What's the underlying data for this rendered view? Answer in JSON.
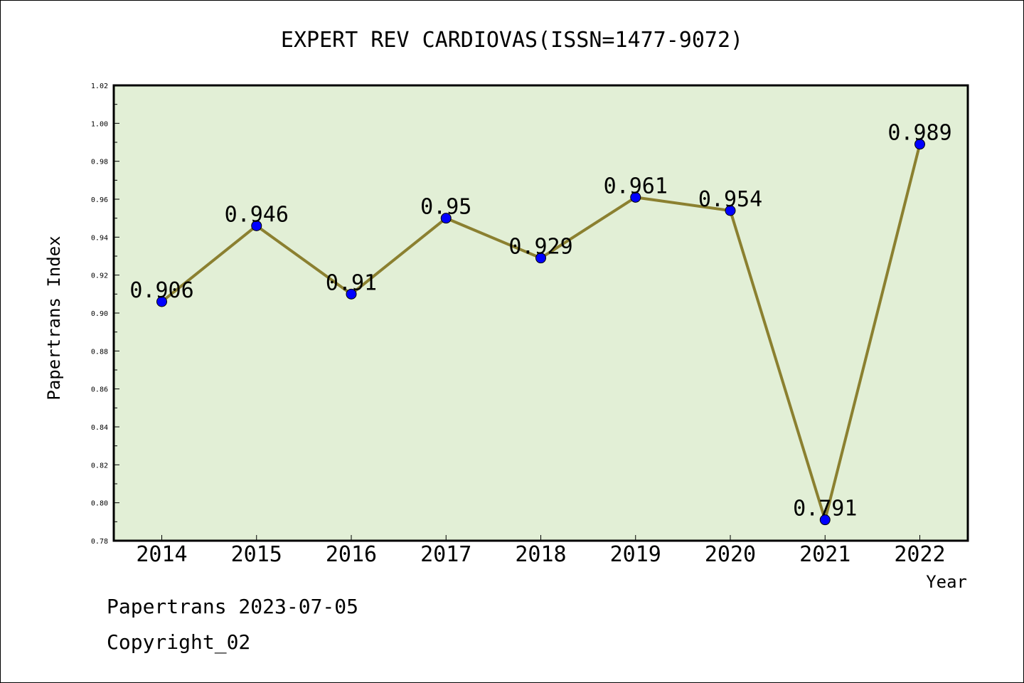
{
  "chart_data": {
    "type": "line",
    "title": "EXPERT REV CARDIOVAS(ISSN=1477-9072)",
    "xlabel": "Year",
    "ylabel": "Papertrans Index",
    "categories": [
      "2014",
      "2015",
      "2016",
      "2017",
      "2018",
      "2019",
      "2020",
      "2021",
      "2022"
    ],
    "series": [
      {
        "values": [
          0.906,
          0.946,
          0.91,
          0.95,
          0.929,
          0.961,
          0.954,
          0.791,
          0.989
        ],
        "labels": [
          "0.906",
          "0.946",
          "0.91",
          "0.95",
          "0.929",
          "0.961",
          "0.954",
          "0.791",
          "0.989"
        ]
      }
    ],
    "ylim": [
      0.78,
      1.02
    ],
    "yticks": [
      "0.78",
      "0.80",
      "0.82",
      "0.84",
      "0.86",
      "0.88",
      "0.90",
      "0.92",
      "0.94",
      "0.96",
      "0.98",
      "1.00",
      "1.02"
    ],
    "grid": false,
    "colors": {
      "plot_bg": "#e2efd6",
      "line": "#8b8030",
      "marker": "#0000ff"
    }
  },
  "footer": {
    "date_line": "Papertrans 2023-07-05",
    "copyright": "Copyright_02"
  }
}
